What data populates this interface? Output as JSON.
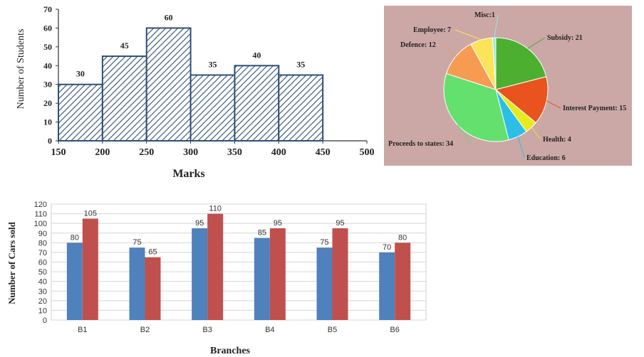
{
  "chart_data": [
    {
      "type": "bar",
      "subtype": "histogram",
      "title": "",
      "xlabel": "Marks",
      "ylabel": "Number of Students",
      "bins": [
        [
          150,
          200
        ],
        [
          200,
          250
        ],
        [
          250,
          300
        ],
        [
          300,
          350
        ],
        [
          350,
          400
        ],
        [
          400,
          450
        ]
      ],
      "values": [
        30,
        45,
        60,
        35,
        40,
        35
      ],
      "value_labels": [
        "30",
        "45",
        "60",
        "35",
        "40",
        "35"
      ],
      "xticks": [
        "150",
        "200",
        "250",
        "300",
        "350",
        "400",
        "450",
        "500"
      ],
      "yticks": [
        "0",
        "10",
        "20",
        "30",
        "40",
        "50",
        "60",
        "70"
      ],
      "xlim": [
        150,
        500
      ],
      "ylim": [
        0,
        70
      ],
      "grid": false,
      "bar_fill": "diagonal hatch",
      "bar_color": "#2f4f78"
    },
    {
      "type": "pie",
      "title": "",
      "background": "#cba7a5",
      "slices": [
        {
          "label": "Subsidy",
          "value": 21,
          "text": "Subsidy: 21",
          "color": "#4caf2f"
        },
        {
          "label": "Interest Payment",
          "value": 15,
          "text": "Interest Payment: 15",
          "color": "#e8531e"
        },
        {
          "label": "Health",
          "value": 4,
          "text": "Health: 4",
          "color": "#e6ea1f"
        },
        {
          "label": "Education",
          "value": 6,
          "text": "Education: 6",
          "color": "#2bbfe6"
        },
        {
          "label": "Proceeds to states",
          "value": 34,
          "text": "Proceeds to states: 34",
          "color": "#63e06d"
        },
        {
          "label": "Defence",
          "value": 12,
          "text": "Defence: 12",
          "color": "#f79a52"
        },
        {
          "label": "Employee",
          "value": 7,
          "text": "Employee: 7",
          "color": "#fbe35a"
        },
        {
          "label": "Misc",
          "value": 1,
          "text": "Misc:1",
          "color": "#9ae8e3"
        }
      ]
    },
    {
      "type": "bar",
      "title": "",
      "xlabel": "Branches",
      "ylabel": "Number of Cars sold",
      "categories": [
        "B1",
        "B2",
        "B3",
        "B4",
        "B5",
        "B6"
      ],
      "series": [
        {
          "values": [
            80,
            75,
            95,
            85,
            75,
            70
          ],
          "color": "#4f81bd"
        },
        {
          "values": [
            105,
            65,
            110,
            95,
            95,
            80
          ],
          "color": "#c0504d"
        }
      ],
      "yticks": [
        "0",
        "10",
        "20",
        "30",
        "40",
        "50",
        "60",
        "70",
        "80",
        "90",
        "100",
        "110",
        "120"
      ],
      "ylim": [
        0,
        120
      ],
      "grid": true,
      "legend": "none"
    }
  ]
}
